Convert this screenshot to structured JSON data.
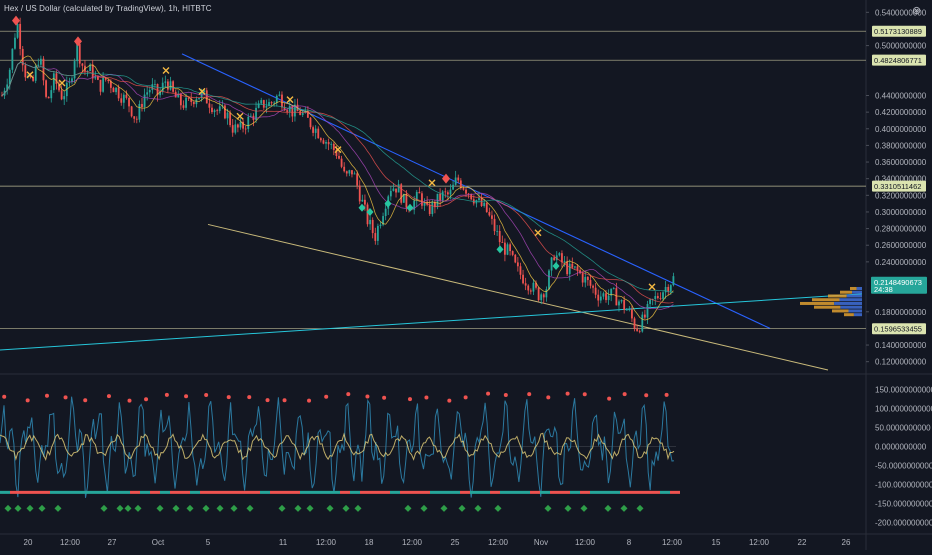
{
  "header": {
    "title": "Hex / US Dollar (calculated by TradingView), 1h, HITBTC",
    "close_icon": "close-icon"
  },
  "colors": {
    "background": "#131722",
    "up": "#26a69a",
    "down": "#ef5350",
    "trend_blue": "#2962ff",
    "support": "#c8b97a",
    "rising_line": "#26c6da",
    "hline": "#d8d4a8",
    "tag_bg": "#dbe4b0",
    "last_price_bg": "#26a69a"
  },
  "chart_data": [
    {
      "type": "candlestick",
      "title": "Hex / US Dollar (calculated by TradingView), 1h, HITBTC",
      "ylim": [
        0.11,
        0.55
      ],
      "y_ticks": [
        "0.5400000000",
        "0.5000000000",
        "0.4400000000",
        "0.4200000000",
        "0.4000000000",
        "0.3800000000",
        "0.3600000000",
        "0.3400000000",
        "0.3200000000",
        "0.3000000000",
        "0.2800000000",
        "0.2600000000",
        "0.2400000000",
        "0.1800000000",
        "0.1400000000",
        "0.1200000000"
      ],
      "x_ticks": [
        "20",
        "12:00",
        "27",
        "Oct",
        "5",
        "11",
        "12:00",
        "18",
        "12:00",
        "25",
        "12:00",
        "Nov",
        "12:00",
        "8",
        "12:00",
        "15",
        "12:00",
        "22",
        "26"
      ],
      "horizontal_levels": [
        "0.5173130889",
        "0.4824806771",
        "0.3310511462",
        "0.1596533455"
      ],
      "last_price": {
        "value": "0.2148490673",
        "countdown": "24:38"
      },
      "price_path": [
        0.44,
        0.47,
        0.53,
        0.47,
        0.45,
        0.49,
        0.43,
        0.46,
        0.44,
        0.45,
        0.5,
        0.47,
        0.47,
        0.45,
        0.46,
        0.45,
        0.44,
        0.43,
        0.41,
        0.44,
        0.45,
        0.44,
        0.46,
        0.44,
        0.43,
        0.43,
        0.44,
        0.44,
        0.43,
        0.42,
        0.42,
        0.4,
        0.4,
        0.41,
        0.42,
        0.43,
        0.43,
        0.44,
        0.43,
        0.42,
        0.42,
        0.41,
        0.4,
        0.39,
        0.38,
        0.37,
        0.34,
        0.35,
        0.32,
        0.29,
        0.27,
        0.3,
        0.33,
        0.33,
        0.31,
        0.31,
        0.32,
        0.3,
        0.31,
        0.32,
        0.32,
        0.34,
        0.33,
        0.32,
        0.31,
        0.3,
        0.28,
        0.26,
        0.25,
        0.23,
        0.22,
        0.21,
        0.2,
        0.21,
        0.25,
        0.24,
        0.23,
        0.23,
        0.22,
        0.21,
        0.2,
        0.2,
        0.2,
        0.19,
        0.18,
        0.16,
        0.17,
        0.19,
        0.2,
        0.21,
        0.22
      ]
    },
    {
      "type": "bar",
      "title": "",
      "ylim": [
        -220,
        180
      ],
      "y_ticks": [
        "150.0000000000",
        "100.0000000000",
        "50.0000000000",
        "0.0000000000",
        "-50.0000000000",
        "-100.0000000000",
        "-150.0000000000",
        "-200.0000000000"
      ]
    }
  ]
}
